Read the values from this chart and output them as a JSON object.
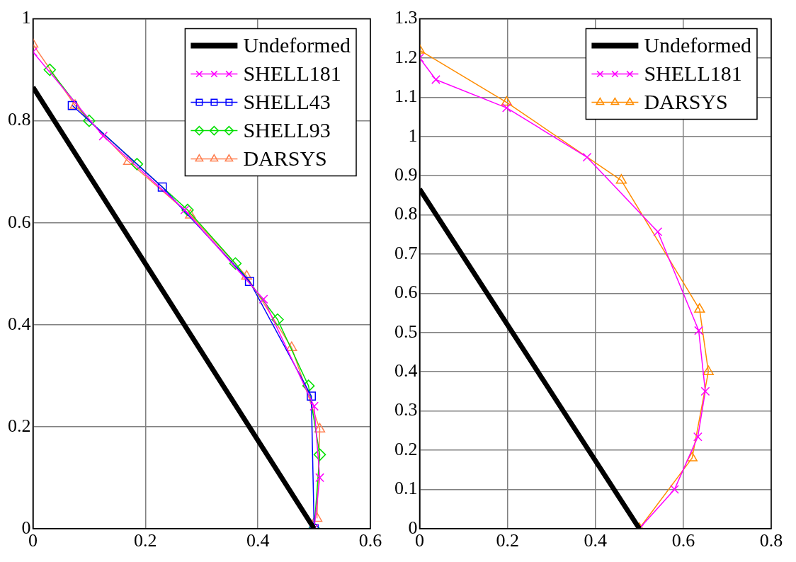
{
  "chart_data": [
    {
      "type": "line",
      "xlim": [
        0,
        0.6
      ],
      "xticks": [
        0,
        0.2,
        0.4,
        0.6
      ],
      "ylim": [
        0,
        1
      ],
      "yticks": [
        0,
        0.2,
        0.4,
        0.6,
        0.8,
        1
      ],
      "grid": true,
      "legend": "top right",
      "series": [
        {
          "name": "Undeformed",
          "color": "#000000",
          "marker": "none",
          "x": [
            0,
            0.25,
            0.5
          ],
          "values": [
            0.866,
            0.433,
            0
          ]
        },
        {
          "name": "SHELL181",
          "color": "#ff00ff",
          "marker": "cross",
          "x": [
            0,
            0.125,
            0.27,
            0.41,
            0.5,
            0.51,
            0.5
          ],
          "values": [
            0.935,
            0.77,
            0.625,
            0.45,
            0.24,
            0.1,
            0
          ]
        },
        {
          "name": "SHELL43",
          "color": "#0000ff",
          "marker": "square",
          "x": [
            0.07,
            0.23,
            0.385,
            0.495,
            0.5
          ],
          "values": [
            0.83,
            0.67,
            0.485,
            0.26,
            0
          ]
        },
        {
          "name": "SHELL93",
          "color": "#00e000",
          "marker": "diamond",
          "x": [
            0.03,
            0.1,
            0.185,
            0.275,
            0.36,
            0.435,
            0.49,
            0.51,
            0.5
          ],
          "values": [
            0.9,
            0.8,
            0.715,
            0.625,
            0.52,
            0.41,
            0.28,
            0.145,
            0
          ]
        },
        {
          "name": "DARSYS",
          "color": "#ff7f50",
          "marker": "triangle",
          "x": [
            0,
            0.075,
            0.17,
            0.28,
            0.38,
            0.46,
            0.51,
            0.505
          ],
          "values": [
            0.95,
            0.83,
            0.72,
            0.615,
            0.495,
            0.355,
            0.195,
            0.02
          ]
        }
      ]
    },
    {
      "type": "line",
      "xlim": [
        0,
        0.8
      ],
      "xticks": [
        0,
        0.2,
        0.4,
        0.6,
        0.8
      ],
      "ylim": [
        0,
        1.3
      ],
      "yticks": [
        0,
        0.1,
        0.2,
        0.3,
        0.4,
        0.5,
        0.6,
        0.7,
        0.8,
        0.9,
        1,
        1.1,
        1.2,
        1.3
      ],
      "grid": true,
      "legend": "top right",
      "series": [
        {
          "name": "Undeformed",
          "color": "#000000",
          "marker": "none",
          "x": [
            0,
            0.25,
            0.5
          ],
          "values": [
            0.866,
            0.433,
            0
          ]
        },
        {
          "name": "SHELL181",
          "color": "#ff00ff",
          "marker": "cross",
          "x": [
            0,
            0.037,
            0.198,
            0.381,
            0.542,
            0.635,
            0.65,
            0.633,
            0.58,
            0.5
          ],
          "values": [
            1.2,
            1.145,
            1.073,
            0.947,
            0.757,
            0.505,
            0.35,
            0.234,
            0.1,
            0
          ]
        },
        {
          "name": "DARSYS",
          "color": "#ff8c00",
          "marker": "triangle",
          "x": [
            0,
            0.198,
            0.459,
            0.637,
            0.657,
            0.62,
            0.5
          ],
          "values": [
            1.22,
            1.087,
            0.888,
            0.559,
            0.4,
            0.18,
            0
          ]
        }
      ]
    }
  ]
}
